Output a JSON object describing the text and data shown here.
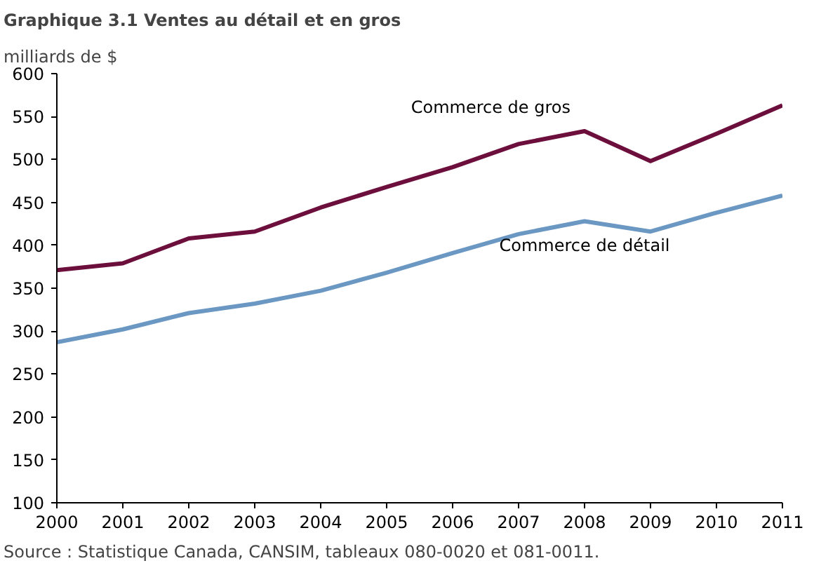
{
  "chart_data": {
    "type": "line",
    "title": "Graphique 3.1  Ventes au détail et en gros",
    "ylabel": "milliards de $",
    "x": [
      2000,
      2001,
      2002,
      2003,
      2004,
      2005,
      2006,
      2007,
      2008,
      2009,
      2010,
      2011
    ],
    "series": [
      {
        "name": "Commerce de gros",
        "color": "#6d0f3c",
        "values": [
          371,
          379,
          408,
          416,
          444,
          468,
          491,
          518,
          533,
          498,
          530,
          563
        ]
      },
      {
        "name": "Commerce de détail",
        "color": "#6b97c3",
        "values": [
          287,
          302,
          321,
          332,
          347,
          368,
          391,
          413,
          428,
          416,
          438,
          458
        ]
      }
    ],
    "xlim": [
      2000,
      2011
    ],
    "ylim": [
      100,
      600
    ],
    "xticks": [
      2000,
      2001,
      2002,
      2003,
      2004,
      2005,
      2006,
      2007,
      2008,
      2009,
      2010,
      2011
    ],
    "yticks": [
      100,
      150,
      200,
      250,
      300,
      350,
      400,
      450,
      500,
      550,
      600
    ],
    "grid": false,
    "legend": false,
    "marker": "none",
    "line_style": "solid",
    "annotations": [
      "Source : Statistique Canada, CANSIM, tableaux 080-0020 et 081-0011."
    ]
  }
}
